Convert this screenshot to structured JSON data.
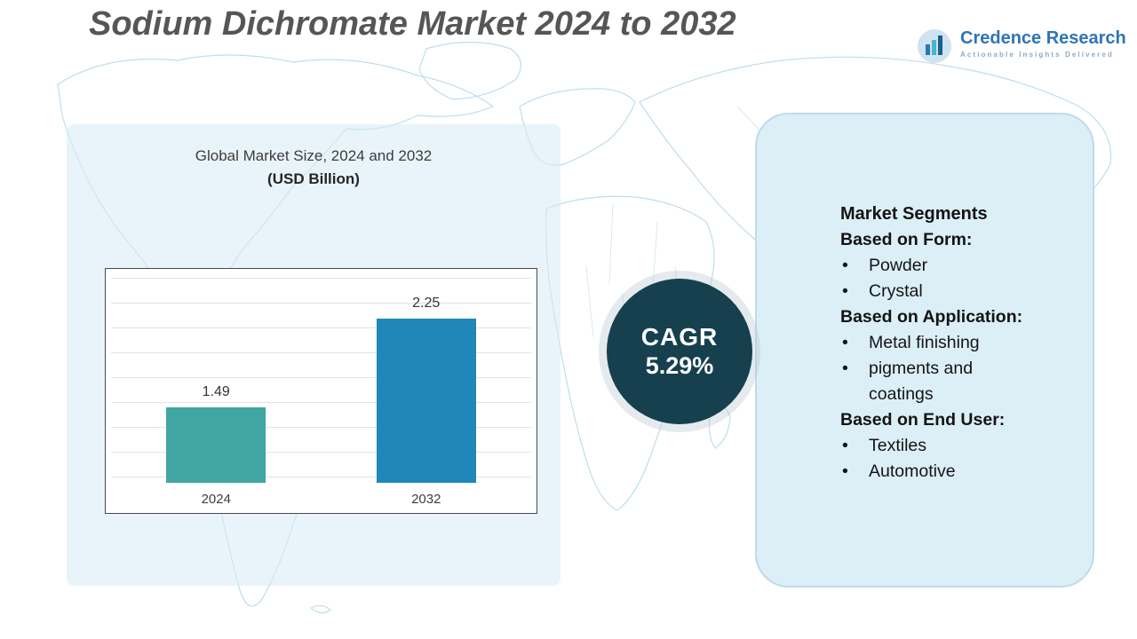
{
  "title": "Sodium Dichromate Market 2024 to 2032",
  "logo": {
    "name": "Credence Research",
    "tagline": "Actionable Insights Delivered"
  },
  "chart_data": {
    "type": "bar",
    "title": "Global Market Size, 2024 and 2032",
    "subtitle": "(USD Billion)",
    "categories": [
      "2024",
      "2032"
    ],
    "values": [
      1.49,
      2.25
    ],
    "value_labels": [
      "1.49",
      "2.25"
    ],
    "xlabel": "",
    "ylabel": "",
    "ylim": [
      0.85,
      2.6
    ],
    "grid": true,
    "legend": false,
    "bar_colors": [
      "#41a6a1",
      "#1f87ba"
    ]
  },
  "cagr": {
    "label": "CAGR",
    "value": "5.29%"
  },
  "segments": {
    "heading": "Market Segments",
    "groups": [
      {
        "label": "Based on Form:",
        "items": [
          "Powder",
          "Crystal"
        ]
      },
      {
        "label": "Based on Application:",
        "items": [
          "Metal finishing",
          "pigments and coatings"
        ]
      },
      {
        "label": "Based on End User:",
        "items": [
          "Textiles",
          "Automotive"
        ]
      }
    ]
  },
  "colors": {
    "title_text": "#565656",
    "cagr_circle": "#16404e",
    "panel_fill": "#dceef6",
    "panel_border": "#bcdcea",
    "map_line": "#b3d8e8",
    "logo_blue": "#2e75b6"
  }
}
